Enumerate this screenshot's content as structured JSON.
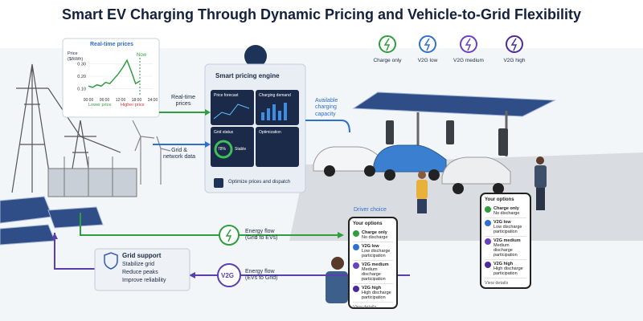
{
  "title": "Smart EV Charging Through Dynamic Pricing and Vehicle-to-Grid Flexibility",
  "price_panel": {
    "title": "Real-time prices",
    "y_label": "Price ($/kWh)",
    "now_label": "Now",
    "ylim": [
      0.05,
      0.35
    ],
    "yticks": [
      {
        "value": 0.3,
        "label": "0.30"
      },
      {
        "value": 0.2,
        "label": "0.20"
      },
      {
        "value": 0.1,
        "label": "0.10"
      }
    ],
    "xticks": [
      "00:00",
      "06:00",
      "12:00",
      "18:00",
      "24:00"
    ],
    "values": [
      0.12,
      0.11,
      0.13,
      0.12,
      0.15,
      0.14,
      0.18,
      0.22,
      0.27,
      0.33,
      0.24,
      0.14,
      0.16
    ],
    "legend": [
      "Lower price",
      "Higher price"
    ]
  },
  "engine": {
    "title": "Smart pricing engine",
    "tiles": [
      "Price forecast",
      "Charging demand",
      "Grid status",
      "Optimization"
    ],
    "gauge": "78%",
    "status": "Stable",
    "footer": "Optimize prices and dispatch"
  },
  "flows": {
    "realtime": "Real-time prices",
    "grid_data": "Grid & network data",
    "capacity": "Available charging capacity",
    "grid_to_ev": "Energy flow (Grid to EVs)",
    "ev_to_grid": "Energy flow (EVs to Grid)",
    "v2g_badge": "V2G"
  },
  "modes": [
    {
      "name": "Charge only",
      "detail": "No discharge",
      "color": "#2e9e3e"
    },
    {
      "name": "V2G low",
      "detail": "Low discharge participation",
      "color": "#2f6fd1"
    },
    {
      "name": "V2G medium",
      "detail": "Medium discharge participation",
      "color": "#6a3fc1"
    },
    {
      "name": "V2G high",
      "detail": "High discharge participation",
      "color": "#4b2a9e"
    }
  ],
  "grid_support": {
    "title": "Grid support",
    "items": [
      "Stabilize grid",
      "Reduce peaks",
      "Improve reliability"
    ]
  },
  "driver_choice": "Driver choice",
  "phone": {
    "header": "Your options",
    "footer": "View details"
  }
}
